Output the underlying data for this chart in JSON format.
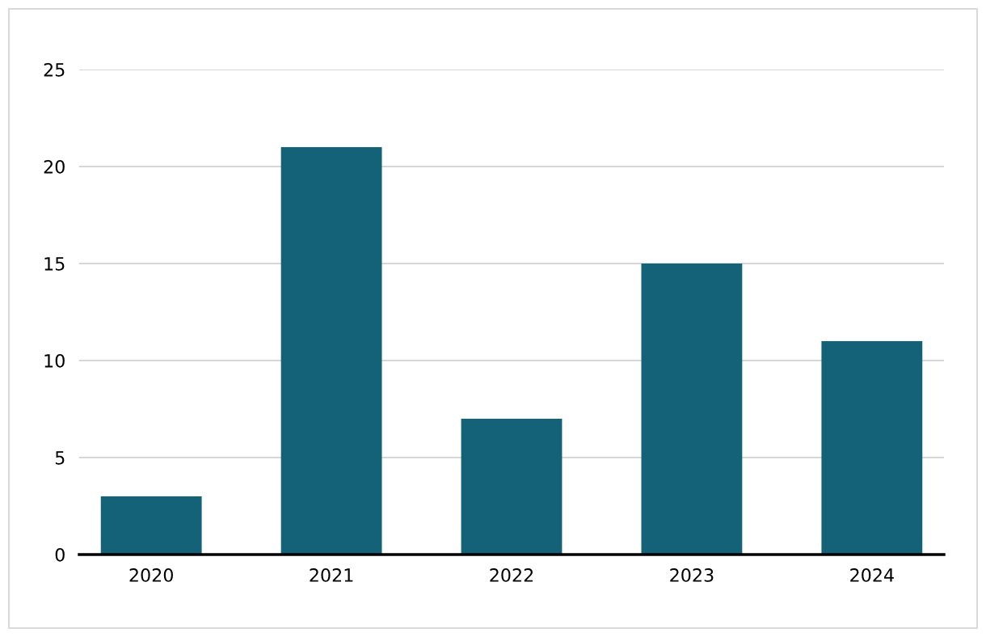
{
  "chart_data": {
    "type": "bar",
    "categories": [
      "2020",
      "2021",
      "2022",
      "2023",
      "2024"
    ],
    "values": [
      3,
      21,
      7,
      15,
      11
    ],
    "color": "#136278",
    "ylim": [
      0,
      25
    ],
    "yticks": [
      0,
      5,
      10,
      15,
      20,
      25
    ],
    "grid": "y",
    "legend": false
  }
}
